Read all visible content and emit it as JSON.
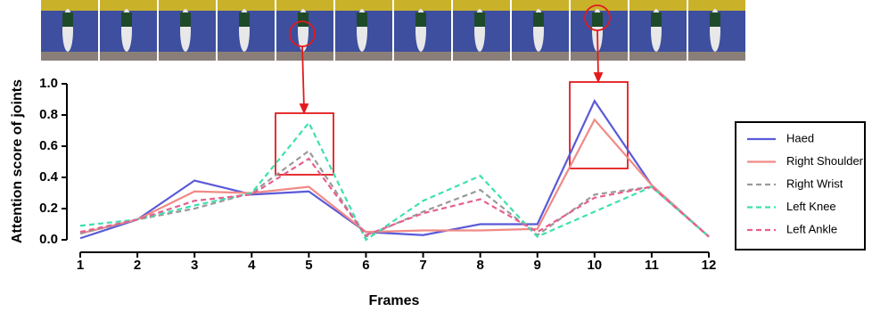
{
  "chart_data": {
    "type": "line",
    "x_label": "Frames",
    "y_label": "Attention score of joints",
    "x": [
      1,
      2,
      3,
      4,
      5,
      6,
      7,
      8,
      9,
      10,
      11,
      12
    ],
    "xlim": [
      1,
      12
    ],
    "xticks": [
      1,
      2,
      3,
      4,
      5,
      6,
      7,
      8,
      9,
      10,
      11,
      12
    ],
    "ylim": [
      0,
      1
    ],
    "yticks": [
      {
        "value": 0,
        "label": "0.0"
      },
      {
        "value": 0.2,
        "label": "0.2"
      },
      {
        "value": 0.4,
        "label": "0.4"
      },
      {
        "value": 0.6,
        "label": "0.6"
      },
      {
        "value": 0.8,
        "label": "0.8"
      },
      {
        "value": 1,
        "label": "1.0"
      }
    ],
    "legend": "right",
    "series": [
      {
        "name": "Haed",
        "color": "#5a5ad8",
        "style": "solid",
        "values": [
          0.01,
          0.13,
          0.38,
          0.29,
          0.31,
          0.05,
          0.03,
          0.1,
          0.1,
          0.89,
          0.35,
          0.02
        ]
      },
      {
        "name": "Right Shoulder",
        "color": "#f08a86",
        "style": "solid",
        "values": [
          0.04,
          0.13,
          0.31,
          0.3,
          0.34,
          0.05,
          0.06,
          0.06,
          0.07,
          0.77,
          0.35,
          0.02
        ]
      },
      {
        "name": "Right Wrist",
        "color": "#9a9a9a",
        "style": "dashed",
        "values": [
          0.04,
          0.13,
          0.2,
          0.3,
          0.57,
          0.02,
          0.18,
          0.32,
          0.03,
          0.29,
          0.34,
          0.02
        ]
      },
      {
        "name": "Left Knee",
        "color": "#3ee0b0",
        "style": "dashed",
        "values": [
          0.09,
          0.13,
          0.22,
          0.3,
          0.75,
          0.0,
          0.25,
          0.41,
          0.02,
          0.18,
          0.34,
          0.02
        ]
      },
      {
        "name": "Left Ankle",
        "color": "#e5608e",
        "style": "dashed",
        "values": [
          0.05,
          0.13,
          0.25,
          0.29,
          0.52,
          0.03,
          0.17,
          0.26,
          0.05,
          0.27,
          0.34,
          0.02
        ]
      }
    ]
  }
}
